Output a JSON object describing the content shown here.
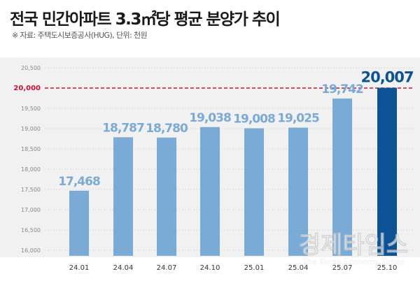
{
  "chart_data": {
    "type": "bar",
    "title": "전국 민간아파트 3.3㎡당 평균 분양가 추이",
    "subtitle": "※ 자료: 주택도시보증공사(HUG), 단위: 천원",
    "categories": [
      "24.01",
      "24.04",
      "24.07",
      "24.10",
      "25.01",
      "25.04",
      "25.07",
      "25.10"
    ],
    "values": [
      17468,
      18787,
      18780,
      19038,
      19008,
      19025,
      19742,
      20007
    ],
    "value_labels": [
      "17,468",
      "18,787",
      "18,780",
      "19,038",
      "19,008",
      "19,025",
      "19,742",
      "20,007"
    ],
    "ylim": [
      16000,
      20500
    ],
    "yticks": [
      16000,
      16500,
      17000,
      17500,
      18000,
      18500,
      19000,
      19500,
      20000,
      20500
    ],
    "ytick_labels": [
      "16,000",
      "16,500",
      "17,000",
      "17,500",
      "18,000",
      "18,500",
      "19,000",
      "19,500",
      "20,000",
      "20,500"
    ],
    "reference_line": {
      "value": 20000,
      "label": "20,000",
      "color": "#c8102e"
    },
    "colors": {
      "bar": "#7aaad6",
      "highlight_bar": "#0b5394",
      "label": "#7aaad6",
      "highlight_label": "#0b5394"
    },
    "grid": true,
    "xlabel": "",
    "ylabel": ""
  },
  "watermark": {
    "text": "경제타임스",
    "subtext": "The Korea Economy Times"
  }
}
